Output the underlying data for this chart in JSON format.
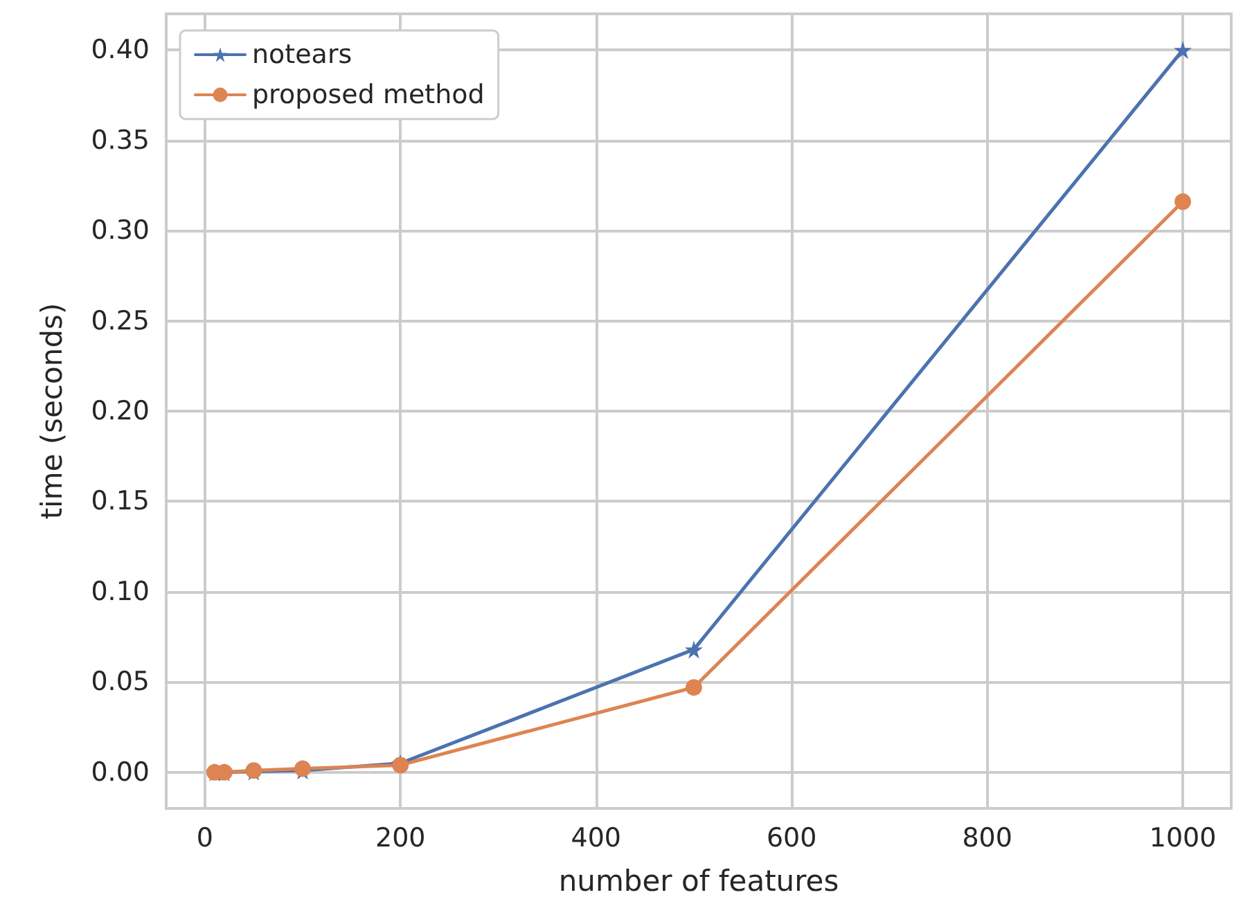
{
  "chart_data": {
    "type": "line",
    "xlabel": "number of features",
    "ylabel": "time (seconds)",
    "x": [
      10,
      20,
      50,
      100,
      200,
      500,
      1000
    ],
    "series": [
      {
        "name": "notears",
        "color": "#4c72b0",
        "marker": "star",
        "values": [
          0,
          0,
          0.0005,
          0.001,
          0.005,
          0.068,
          0.4
        ]
      },
      {
        "name": "proposed method",
        "color": "#dd8452",
        "marker": "circle",
        "values": [
          0,
          0,
          0.001,
          0.002,
          0.004,
          0.047,
          0.316
        ]
      }
    ],
    "xlim": [
      -39.5,
      1049.5
    ],
    "ylim": [
      -0.02,
      0.42
    ],
    "xticks": [
      0,
      200,
      400,
      600,
      800,
      1000
    ],
    "yticks": [
      {
        "value": 0,
        "label": "0.00"
      },
      {
        "value": 0.05,
        "label": "0.05"
      },
      {
        "value": 0.1,
        "label": "0.10"
      },
      {
        "value": 0.15,
        "label": "0.15"
      },
      {
        "value": 0.2,
        "label": "0.20"
      },
      {
        "value": 0.25,
        "label": "0.25"
      },
      {
        "value": 0.3,
        "label": "0.30"
      },
      {
        "value": 0.35,
        "label": "0.35"
      },
      {
        "value": 0.4,
        "label": "0.40"
      }
    ],
    "grid": true,
    "legend": "top left",
    "line_style": "solid"
  }
}
